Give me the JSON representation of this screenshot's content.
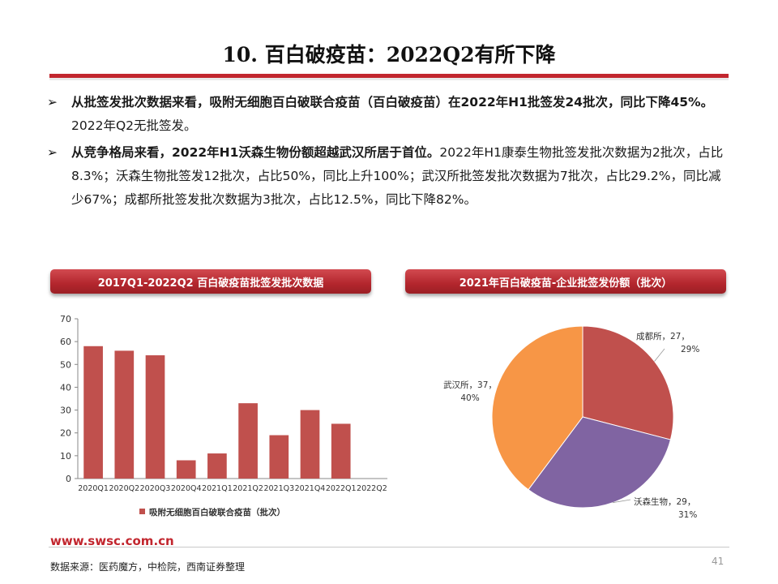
{
  "page": {
    "title": "10. 百白破疫苗：2022Q2有所下降",
    "url": "www.swsc.com.cn",
    "page_number": "41",
    "source": "数据来源：医药魔方，中检院，西南证券整理"
  },
  "bullets": [
    {
      "arrow": "➢",
      "bold": "从批签发批次数据来看，吸附无细胞百白破联合疫苗（百白破疫苗）在2022年H1批签发24批次，同比下降45%。",
      "normal": "2022年Q2无批签发。"
    },
    {
      "arrow": "➢",
      "bold": "从竞争格局来看，2022年H1沃森生物份额超越武汉所居于首位。",
      "normal": "2022年H1康泰生物批签发批次数据为2批次，占比8.3%；沃森生物批签发12批次，占比50%，同比上升100%；武汉所批签发批次数据为7批次，占比29.2%，同比减少67%；成都所批签发批次数据为3批次，占比12.5%，同比下降82%。"
    }
  ],
  "banners": {
    "left": "2017Q1-2022Q2 百白破疫苗批签发批次数据",
    "right": "2021年百白破疫苗-企业批签发份额（批次）"
  },
  "chart_data": [
    {
      "type": "bar",
      "categories": [
        "2020Q1",
        "2020Q2",
        "2020Q3",
        "2020Q4",
        "2021Q1",
        "2021Q2",
        "2021Q3",
        "2021Q4",
        "2022Q1",
        "2022Q2"
      ],
      "series": [
        {
          "name": "吸附无细胞百白破联合疫苗（批次）",
          "values": [
            58,
            56,
            54,
            8,
            11,
            33,
            19,
            30,
            24,
            0
          ]
        }
      ],
      "ylim": [
        0,
        70
      ],
      "yticks": [
        0,
        10,
        20,
        30,
        40,
        50,
        60,
        70
      ],
      "grid": false,
      "legend": "bottom",
      "colors": {
        "bar": "#c0504d"
      }
    },
    {
      "type": "pie",
      "slices": [
        {
          "label": "成都所，27，29%",
          "name": "成都所",
          "value": 27,
          "percent": 29,
          "color": "#c0504d"
        },
        {
          "label": "沃森生物，29，31%",
          "name": "沃森生物",
          "value": 29,
          "percent": 31,
          "color": "#8064a2"
        },
        {
          "label": "武汉所，37，40%",
          "name": "武汉所",
          "value": 37,
          "percent": 40,
          "color": "#f79646"
        }
      ]
    }
  ]
}
